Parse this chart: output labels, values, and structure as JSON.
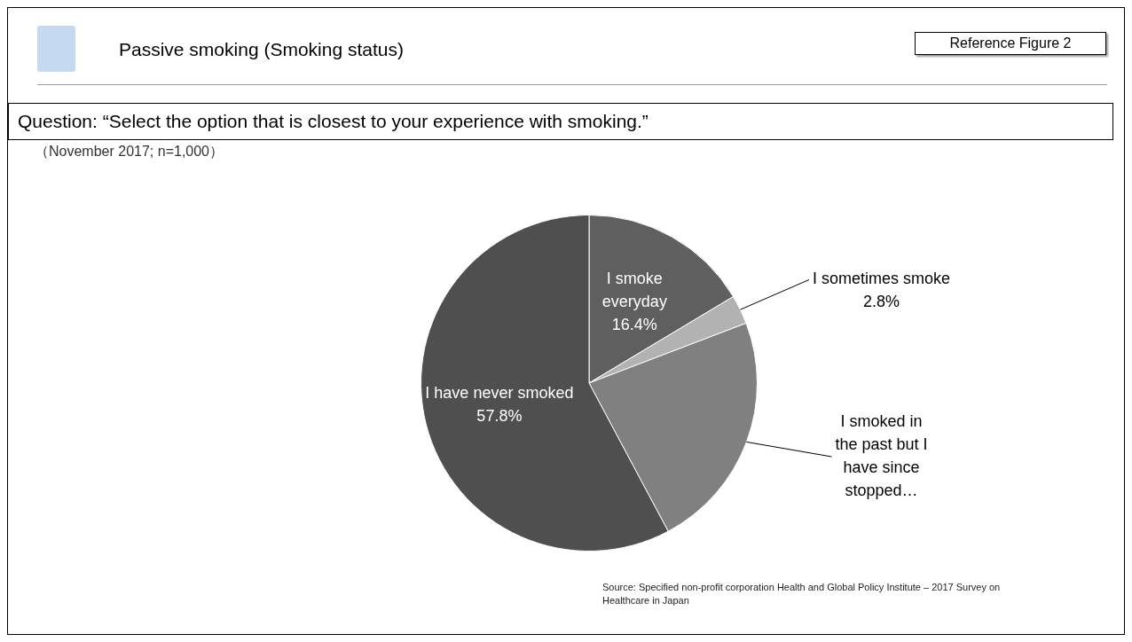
{
  "chart_data": {
    "type": "pie",
    "title": "Passive smoking (Smoking status)",
    "subtitle": "Question: “Select the option that is closest to your experience with smoking.”",
    "annotations": [
      "Reference Figure 2",
      "（November 2017; n=1,000）",
      "Source: Specified non-profit corporation Health and Global Policy Institute – 2017 Survey on Healthcare in Japan"
    ],
    "categories": [
      "I smoke everyday",
      "I sometimes smoke",
      "I smoked in the past but I have since stopped…",
      "I have never smoked"
    ],
    "values": [
      16.4,
      2.8,
      23.0,
      57.8
    ],
    "value_labels": [
      "16.4%",
      "2.8%",
      null,
      "57.8%"
    ],
    "colors": [
      "#5f5f5f",
      "#b2b2b2",
      "#808080",
      "#4f4f4f"
    ],
    "legend": false
  }
}
